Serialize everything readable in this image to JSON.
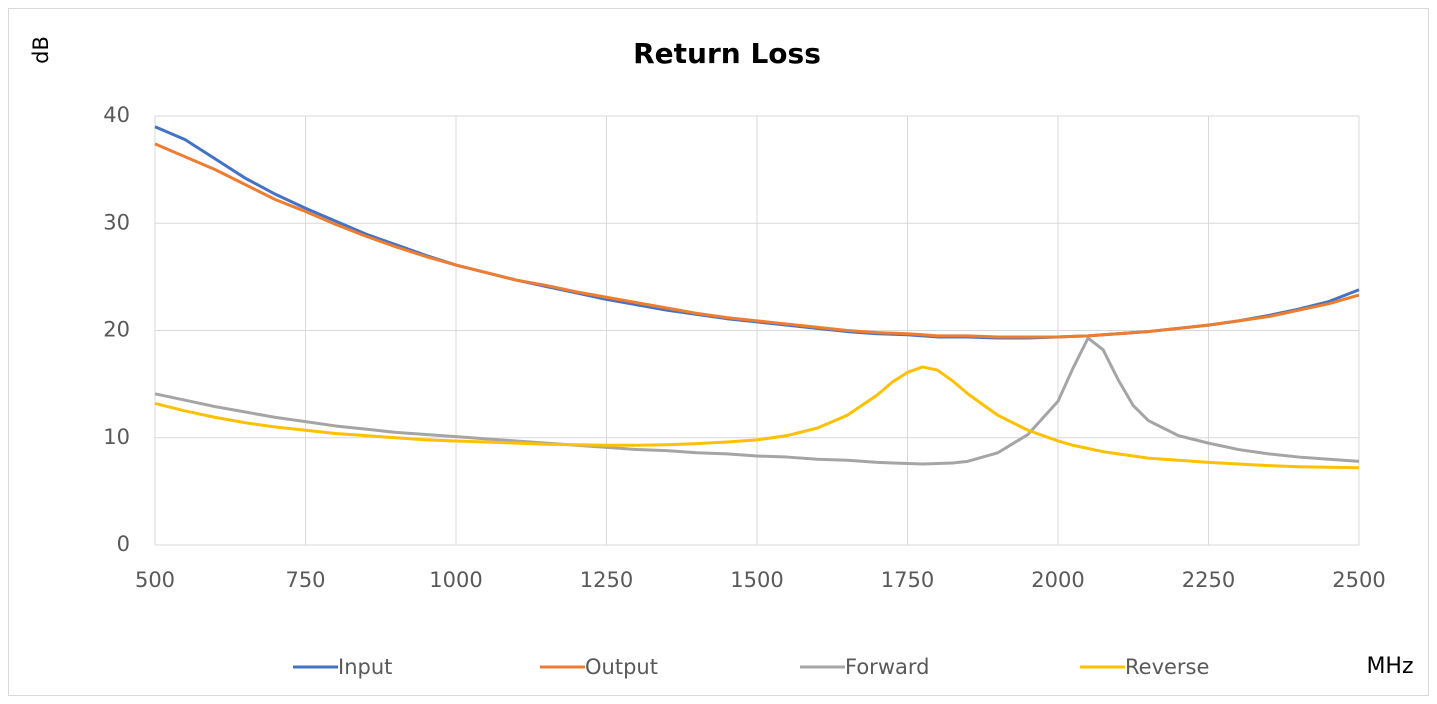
{
  "chart_data": {
    "type": "line",
    "title": "Return Loss",
    "y_label": "dB",
    "x_label": "MHz",
    "x": [
      500,
      550,
      600,
      650,
      700,
      750,
      800,
      850,
      900,
      950,
      1000,
      1050,
      1100,
      1150,
      1200,
      1250,
      1300,
      1350,
      1400,
      1450,
      1500,
      1550,
      1600,
      1650,
      1700,
      1725,
      1750,
      1775,
      1800,
      1825,
      1850,
      1900,
      1950,
      2000,
      2025,
      2050,
      2075,
      2100,
      2125,
      2150,
      2200,
      2250,
      2300,
      2350,
      2400,
      2450,
      2500
    ],
    "series": [
      {
        "name": "Input",
        "color": "#4472c4",
        "values": [
          39,
          37.8,
          36,
          34.2,
          32.7,
          31.4,
          30.2,
          29,
          28,
          27,
          26.1,
          25.4,
          24.7,
          24.1,
          23.5,
          22.9,
          22.4,
          21.9,
          21.5,
          21.1,
          20.8,
          20.5,
          20.2,
          19.9,
          19.7,
          19.65,
          19.6,
          19.5,
          19.4,
          19.4,
          19.4,
          19.3,
          19.3,
          19.4,
          19.45,
          19.5,
          19.6,
          19.7,
          19.8,
          19.9,
          20.2,
          20.5,
          20.9,
          21.4,
          22,
          22.7,
          23.8
        ]
      },
      {
        "name": "Output",
        "color": "#ed7d31",
        "values": [
          37.4,
          36.2,
          35,
          33.6,
          32.2,
          31.1,
          29.9,
          28.8,
          27.8,
          26.9,
          26.1,
          25.4,
          24.7,
          24.2,
          23.6,
          23.1,
          22.6,
          22.1,
          21.6,
          21.2,
          20.9,
          20.6,
          20.3,
          20,
          19.8,
          19.75,
          19.7,
          19.6,
          19.5,
          19.5,
          19.5,
          19.4,
          19.4,
          19.4,
          19.45,
          19.5,
          19.6,
          19.7,
          19.8,
          19.9,
          20.2,
          20.5,
          20.9,
          21.3,
          21.9,
          22.5,
          23.3
        ]
      },
      {
        "name": "Forward",
        "color": "#a5a5a5",
        "values": [
          14.1,
          13.5,
          12.9,
          12.4,
          11.9,
          11.5,
          11.1,
          10.8,
          10.5,
          10.3,
          10.1,
          9.9,
          9.7,
          9.5,
          9.3,
          9.1,
          8.9,
          8.8,
          8.6,
          8.5,
          8.3,
          8.2,
          8,
          7.9,
          7.7,
          7.65,
          7.6,
          7.55,
          7.6,
          7.65,
          7.8,
          8.6,
          10.3,
          13.4,
          16.5,
          19.3,
          18.2,
          15.4,
          13,
          11.6,
          10.2,
          9.5,
          8.9,
          8.5,
          8.2,
          8,
          7.8
        ]
      },
      {
        "name": "Reverse",
        "color": "#ffc000",
        "values": [
          13.2,
          12.5,
          11.9,
          11.4,
          11,
          10.7,
          10.4,
          10.2,
          10,
          9.8,
          9.7,
          9.6,
          9.5,
          9.4,
          9.35,
          9.3,
          9.3,
          9.35,
          9.45,
          9.6,
          9.8,
          10.2,
          10.9,
          12.1,
          14,
          15.2,
          16.1,
          16.6,
          16.3,
          15.3,
          14.1,
          12.1,
          10.7,
          9.7,
          9.3,
          9,
          8.7,
          8.5,
          8.3,
          8.1,
          7.9,
          7.7,
          7.55,
          7.4,
          7.3,
          7.25,
          7.2
        ]
      }
    ],
    "xlim": [
      500,
      2500
    ],
    "xticks": [
      500,
      750,
      1000,
      1250,
      1500,
      1750,
      2000,
      2250,
      2500
    ],
    "ylim": [
      0,
      40
    ],
    "yticks": [
      0,
      10,
      20,
      30,
      40
    ],
    "grid": true,
    "legend": "bottom"
  }
}
